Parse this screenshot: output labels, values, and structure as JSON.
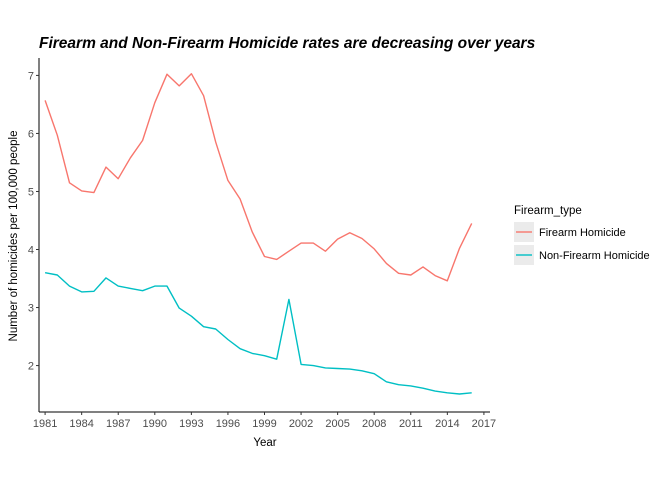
{
  "chart_data": {
    "type": "line",
    "title": "Firearm and Non-Firearm Homicide rates are decreasing over years",
    "xlabel": "Year",
    "ylabel": "Number of homicides per 100,000 people",
    "xlim": [
      1980.5,
      2017.5
    ],
    "ylim": [
      1.2,
      7.3
    ],
    "x_ticks": [
      1981,
      1984,
      1987,
      1990,
      1993,
      1996,
      1999,
      2002,
      2005,
      2008,
      2011,
      2014,
      2017
    ],
    "y_ticks": [
      2,
      3,
      4,
      5,
      6,
      7
    ],
    "grid": false,
    "legend_position": "right",
    "legend_title": "Firearm_type",
    "x": [
      1981,
      1982,
      1983,
      1984,
      1985,
      1986,
      1987,
      1988,
      1989,
      1990,
      1991,
      1992,
      1993,
      1994,
      1995,
      1996,
      1997,
      1998,
      1999,
      2000,
      2001,
      2002,
      2003,
      2004,
      2005,
      2006,
      2007,
      2008,
      2009,
      2010,
      2011,
      2012,
      2013,
      2014,
      2015,
      2016
    ],
    "series": [
      {
        "name": "Firearm Homicide",
        "color": "#F8766D",
        "values": [
          6.57,
          5.97,
          5.15,
          5.01,
          4.98,
          5.42,
          5.22,
          5.58,
          5.88,
          6.53,
          7.02,
          6.82,
          7.03,
          6.65,
          5.85,
          5.19,
          4.87,
          4.3,
          3.88,
          3.83,
          3.97,
          4.11,
          4.11,
          3.97,
          4.18,
          4.29,
          4.19,
          4.01,
          3.76,
          3.59,
          3.56,
          3.7,
          3.55,
          3.46,
          4.02,
          4.45
        ]
      },
      {
        "name": "Non-Firearm Homicide",
        "color": "#00BFC4",
        "values": [
          3.6,
          3.56,
          3.37,
          3.27,
          3.28,
          3.51,
          3.37,
          3.33,
          3.29,
          3.37,
          3.37,
          2.99,
          2.85,
          2.67,
          2.63,
          2.45,
          2.29,
          2.21,
          2.17,
          2.11,
          3.14,
          2.02,
          2.0,
          1.96,
          1.95,
          1.94,
          1.91,
          1.86,
          1.72,
          1.67,
          1.65,
          1.61,
          1.56,
          1.53,
          1.51,
          1.53
        ]
      }
    ]
  }
}
